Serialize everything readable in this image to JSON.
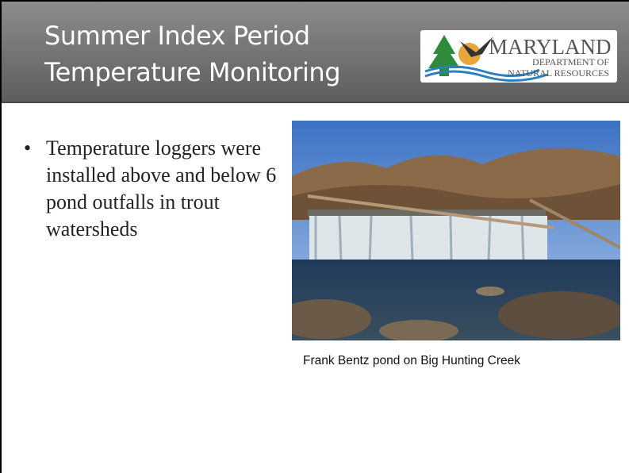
{
  "header": {
    "title": [
      "Summer Index Period",
      "Temperature Monitoring"
    ]
  },
  "logo": {
    "name": "MARYLAND",
    "line1": "DEPARTMENT OF",
    "line2": "NATURAL RESOURCES"
  },
  "body": {
    "bullets": [
      "Temperature loggers were installed above and below 6 pond outfalls in trout watersheds"
    ]
  },
  "figure": {
    "caption": "Frank Bentz pond on Big Hunting Creek"
  }
}
